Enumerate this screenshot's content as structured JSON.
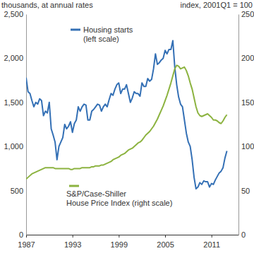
{
  "chart_data": {
    "type": "line",
    "ylabel": "thousands, at annual rates",
    "y2label": "index, 2001Q1 = 100",
    "grid": false,
    "x": [
      1987,
      1987.25,
      1987.5,
      1987.75,
      1988,
      1988.25,
      1988.5,
      1988.75,
      1989,
      1989.25,
      1989.5,
      1989.75,
      1990,
      1990.25,
      1990.5,
      1990.75,
      1991,
      1991.25,
      1991.5,
      1991.75,
      1992,
      1992.25,
      1992.5,
      1992.75,
      1993,
      1993.25,
      1993.5,
      1993.75,
      1994,
      1994.25,
      1994.5,
      1994.75,
      1995,
      1995.25,
      1995.5,
      1995.75,
      1996,
      1996.25,
      1996.5,
      1996.75,
      1997,
      1997.25,
      1997.5,
      1997.75,
      1998,
      1998.25,
      1998.5,
      1998.75,
      1999,
      1999.25,
      1999.5,
      1999.75,
      2000,
      2000.25,
      2000.5,
      2000.75,
      2001,
      2001.25,
      2001.5,
      2001.75,
      2002,
      2002.25,
      2002.5,
      2002.75,
      2003,
      2003.25,
      2003.5,
      2003.75,
      2004,
      2004.25,
      2004.5,
      2004.75,
      2005,
      2005.25,
      2005.5,
      2005.75,
      2006,
      2006.25,
      2006.5,
      2006.75,
      2007,
      2007.25,
      2007.5,
      2007.75,
      2008,
      2008.25,
      2008.5,
      2008.75,
      2009,
      2009.25,
      2009.5,
      2009.75,
      2010,
      2010.25,
      2010.5,
      2010.75,
      2011,
      2011.25,
      2011.5,
      2011.75,
      2012,
      2012.25,
      2012.5,
      2012.75,
      2013
    ],
    "xlim": [
      1987,
      2014.5
    ],
    "xticks": [
      1987,
      1993,
      1999,
      2005,
      2011
    ],
    "ylim": [
      0,
      2500
    ],
    "yticks": [
      0,
      500,
      {
        "value": 1000,
        "label": "1,000"
      },
      {
        "value": 1500,
        "label": "1,500"
      },
      {
        "value": 2000,
        "label": "2,000"
      },
      {
        "value": 2500,
        "label": "2,500"
      }
    ],
    "y2lim": [
      0,
      250
    ],
    "y2ticks": [
      0,
      50,
      100,
      150,
      200,
      250
    ],
    "series": [
      {
        "name": "Housing starts (left scale)",
        "color": "#3470b5",
        "values": [
          1780,
          1620,
          1600,
          1520,
          1450,
          1500,
          1480,
          1540,
          1520,
          1350,
          1400,
          1380,
          1500,
          1200,
          1130,
          1050,
          850,
          1000,
          1050,
          1100,
          1250,
          1200,
          1230,
          1280,
          1160,
          1260,
          1300,
          1450,
          1400,
          1450,
          1480,
          1470,
          1300,
          1300,
          1400,
          1420,
          1450,
          1480,
          1470,
          1400,
          1450,
          1480,
          1450,
          1530,
          1600,
          1580,
          1650,
          1700,
          1720,
          1600,
          1650,
          1650,
          1700,
          1600,
          1500,
          1550,
          1620,
          1600,
          1600,
          1570,
          1720,
          1680,
          1680,
          1770,
          1740,
          1760,
          1880,
          2050,
          1930,
          1950,
          1980,
          2000,
          2090,
          2050,
          2100,
          2100,
          2200,
          1900,
          1700,
          1560,
          1480,
          1450,
          1300,
          1150,
          1050,
          1000,
          850,
          650,
          520,
          540,
          590,
          570,
          610,
          600,
          600,
          540,
          580,
          570,
          620,
          660,
          700,
          720,
          760,
          870,
          950
        ]
      },
      {
        "name": "S&P/Case-Shiller House Price Index (right scale)",
        "color": "#8cb340",
        "axis": "y2",
        "values": [
          63,
          65,
          67,
          69,
          70,
          71,
          72,
          73,
          74,
          75,
          76,
          76,
          76,
          76,
          76,
          75,
          75,
          75,
          75,
          75,
          75,
          75,
          75,
          74,
          74,
          75,
          75,
          75,
          75,
          76,
          76,
          76,
          76,
          76,
          77,
          77,
          78,
          78,
          78,
          79,
          79,
          80,
          81,
          82,
          83,
          85,
          86,
          87,
          88,
          90,
          91,
          92,
          94,
          96,
          97,
          98,
          100,
          102,
          104,
          105,
          107,
          110,
          113,
          115,
          117,
          120,
          123,
          127,
          131,
          136,
          141,
          146,
          152,
          158,
          165,
          172,
          180,
          188,
          192,
          191,
          188,
          189,
          190,
          186,
          180,
          172,
          165,
          155,
          145,
          138,
          135,
          134,
          135,
          136,
          137,
          135,
          133,
          130,
          130,
          129,
          127,
          126,
          129,
          133,
          136
        ]
      }
    ]
  }
}
